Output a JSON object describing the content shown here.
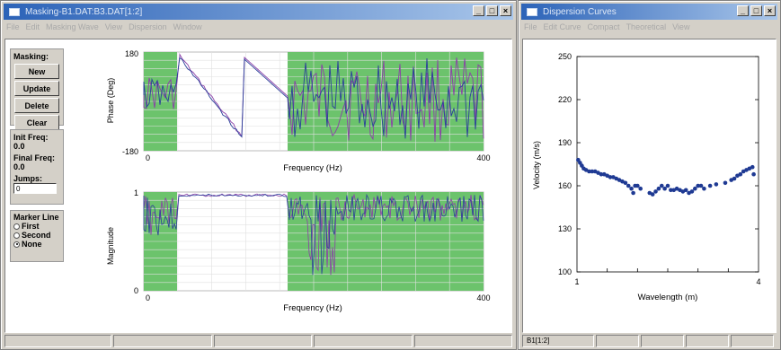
{
  "left_window": {
    "title": "Masking-B1.DAT:B3.DAT[1:2]",
    "menu": [
      "File",
      "Edit",
      "Masking Wave",
      "View",
      "Dispersion",
      "Window"
    ],
    "controls": {
      "min": "_",
      "max": "□",
      "close": "×"
    },
    "masking": {
      "label": "Masking:",
      "buttons": [
        "New",
        "Update",
        "Delete",
        "Clear"
      ]
    },
    "init_freq": {
      "label": "Init Freq:",
      "value": "0.0"
    },
    "final_freq": {
      "label": "Final Freq:",
      "value": "0.0"
    },
    "jumps": {
      "label": "Jumps:",
      "value": "0"
    },
    "marker": {
      "label": "Marker Line",
      "options": [
        "First",
        "Second",
        "None"
      ],
      "selected": "None"
    },
    "phase_plot": {
      "ylabel": "Phase (Deg)",
      "xlabel": "Frequency (Hz)",
      "ytick_top": "180",
      "ytick_bottom": "-180",
      "xtick_left": "0",
      "xtick_right": "400",
      "mask_color": "#6cc36c"
    },
    "mag_plot": {
      "ylabel": "Magnitude",
      "xlabel": "Frequency (Hz)",
      "ytick_top": "1",
      "ytick_bottom": "0",
      "xtick_left": "0",
      "xtick_right": "400",
      "mask_color": "#6cc36c"
    },
    "status_cells": [
      "",
      "",
      "",
      "",
      ""
    ]
  },
  "right_window": {
    "title": "Dispersion Curves",
    "menu": [
      "File",
      "Edit Curve",
      "Compact",
      "Theoretical",
      "View"
    ],
    "controls": {
      "min": "_",
      "max": "□",
      "close": "×"
    },
    "status_cells": [
      "B1[1:2]",
      "",
      "",
      "",
      ""
    ]
  },
  "chart_data": {
    "type": "scatter",
    "xlabel": "Wavelength (m)",
    "ylabel": "Velocity (m/s)",
    "xlim": [
      1,
      4
    ],
    "ylim": [
      100,
      250
    ],
    "xticks": [
      "1",
      "4"
    ],
    "yticks": [
      "100",
      "130",
      "160",
      "190",
      "220",
      "250"
    ],
    "series_color": "#1f3a93",
    "points": [
      [
        1.02,
        178
      ],
      [
        1.05,
        176
      ],
      [
        1.08,
        174
      ],
      [
        1.11,
        172
      ],
      [
        1.15,
        171
      ],
      [
        1.2,
        170
      ],
      [
        1.25,
        170
      ],
      [
        1.3,
        170
      ],
      [
        1.35,
        169
      ],
      [
        1.4,
        168
      ],
      [
        1.45,
        168
      ],
      [
        1.5,
        167
      ],
      [
        1.55,
        166
      ],
      [
        1.6,
        166
      ],
      [
        1.65,
        165
      ],
      [
        1.7,
        164
      ],
      [
        1.75,
        163
      ],
      [
        1.8,
        162
      ],
      [
        1.85,
        160
      ],
      [
        1.9,
        158
      ],
      [
        1.93,
        155
      ],
      [
        1.96,
        160
      ],
      [
        2.0,
        160
      ],
      [
        2.05,
        158
      ],
      [
        2.2,
        155
      ],
      [
        2.25,
        154
      ],
      [
        2.3,
        156
      ],
      [
        2.35,
        158
      ],
      [
        2.4,
        160
      ],
      [
        2.45,
        158
      ],
      [
        2.5,
        160
      ],
      [
        2.55,
        157
      ],
      [
        2.6,
        157
      ],
      [
        2.65,
        158
      ],
      [
        2.7,
        157
      ],
      [
        2.75,
        156
      ],
      [
        2.8,
        157
      ],
      [
        2.85,
        155
      ],
      [
        2.9,
        156
      ],
      [
        2.95,
        158
      ],
      [
        3.0,
        160
      ],
      [
        3.05,
        160
      ],
      [
        3.1,
        158
      ],
      [
        3.2,
        160
      ],
      [
        3.3,
        161
      ],
      [
        3.45,
        162
      ],
      [
        3.55,
        164
      ],
      [
        3.6,
        165
      ],
      [
        3.65,
        167
      ],
      [
        3.7,
        168
      ],
      [
        3.75,
        170
      ],
      [
        3.8,
        171
      ],
      [
        3.85,
        172
      ],
      [
        3.9,
        173
      ],
      [
        3.92,
        168
      ]
    ]
  }
}
